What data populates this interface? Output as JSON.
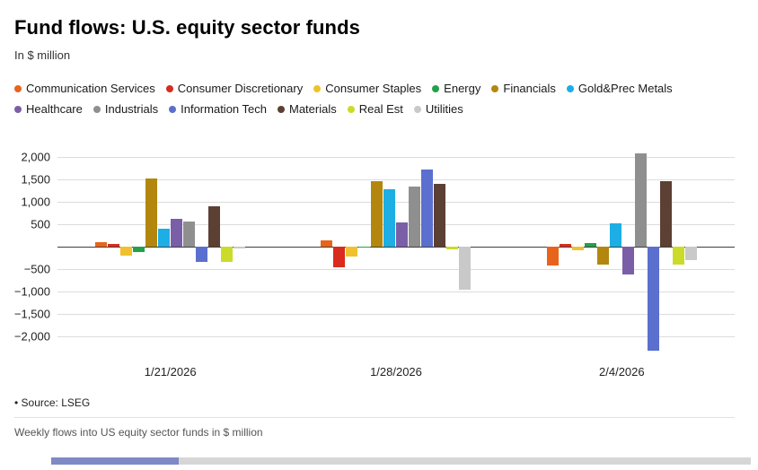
{
  "header": {
    "title": "Fund flows: U.S. equity sector funds",
    "subtitle": "In $ million"
  },
  "chart_data": {
    "type": "bar",
    "title": "Fund flows: U.S. equity sector funds",
    "units": "In $ million",
    "grid": true,
    "legend_position": "top",
    "categories": [
      "1/21/2026",
      "1/28/2026",
      "2/4/2026"
    ],
    "series": [
      {
        "name": "Communication Services",
        "color": "#E8641B",
        "values": [
          100,
          140,
          -420
        ]
      },
      {
        "name": "Consumer Discretionary",
        "color": "#D92B1E",
        "values": [
          60,
          -460,
          60
        ]
      },
      {
        "name": "Consumer Staples",
        "color": "#EFC22D",
        "values": [
          -210,
          -230,
          -90
        ]
      },
      {
        "name": "Energy",
        "color": "#23A04A",
        "values": [
          -120,
          -30,
          70
        ]
      },
      {
        "name": "Financials",
        "color": "#B3870E",
        "values": [
          1510,
          1450,
          -400
        ]
      },
      {
        "name": "Gold&Prec Metals",
        "color": "#1CAEE4",
        "values": [
          400,
          1270,
          520
        ]
      },
      {
        "name": "Healthcare",
        "color": "#7A5FA8",
        "values": [
          620,
          540,
          -620
        ]
      },
      {
        "name": "Industrials",
        "color": "#8F8F8F",
        "values": [
          560,
          1330,
          2080
        ]
      },
      {
        "name": "Information Tech",
        "color": "#5B6FCE",
        "values": [
          -340,
          1720,
          -2320
        ]
      },
      {
        "name": "Materials",
        "color": "#5C4033",
        "values": [
          890,
          1390,
          1450
        ]
      },
      {
        "name": "Real Est",
        "color": "#CBDB2A",
        "values": [
          -350,
          -70,
          -400
        ]
      },
      {
        "name": "Utilities",
        "color": "#C9C9C9",
        "values": [
          -40,
          -960,
          -300
        ]
      }
    ],
    "yticks": [
      {
        "value": 2000,
        "label": "2,000"
      },
      {
        "value": 1500,
        "label": "1,500"
      },
      {
        "value": 1000,
        "label": "1,000"
      },
      {
        "value": 500,
        "label": "500"
      },
      {
        "value": 0,
        "label": ""
      },
      {
        "value": -500,
        "label": "−500"
      },
      {
        "value": -1000,
        "label": "−1,000"
      },
      {
        "value": -1500,
        "label": "−1,500"
      },
      {
        "value": -2000,
        "label": "−2,000"
      }
    ],
    "ylim": [
      -2450,
      2200
    ]
  },
  "footer": {
    "source": "• Source: LSEG",
    "caption": "Weekly flows into US equity sector funds in $ million"
  }
}
